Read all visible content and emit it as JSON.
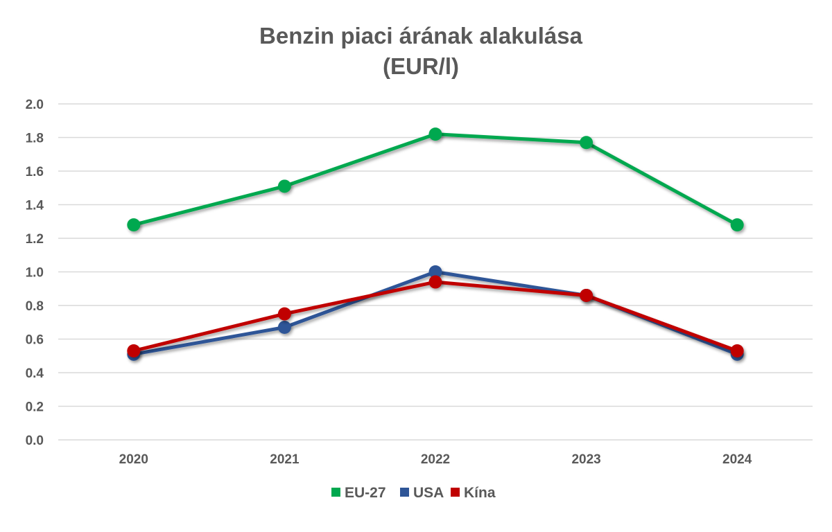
{
  "chart_data": {
    "type": "line",
    "title_lines": [
      "Benzin piaci árának alakulása",
      "(EUR/l)"
    ],
    "categories": [
      "2020",
      "2021",
      "2022",
      "2023",
      "2024"
    ],
    "ylim": [
      0,
      2.0
    ],
    "yticks": [
      "0.0",
      "0.2",
      "0.4",
      "0.6",
      "0.8",
      "1.0",
      "1.2",
      "1.4",
      "1.6",
      "1.8",
      "2.0"
    ],
    "grid": true,
    "legend_position": "bottom",
    "series": [
      {
        "name": "EU-27",
        "color": "#00a84f",
        "values": [
          1.28,
          1.51,
          1.82,
          1.77,
          1.28
        ]
      },
      {
        "name": "USA",
        "color": "#2e5597",
        "values": [
          0.51,
          0.67,
          1.0,
          0.86,
          0.51
        ]
      },
      {
        "name": "Kína",
        "color": "#c00000",
        "values": [
          0.53,
          0.75,
          0.94,
          0.86,
          0.53
        ]
      }
    ]
  }
}
